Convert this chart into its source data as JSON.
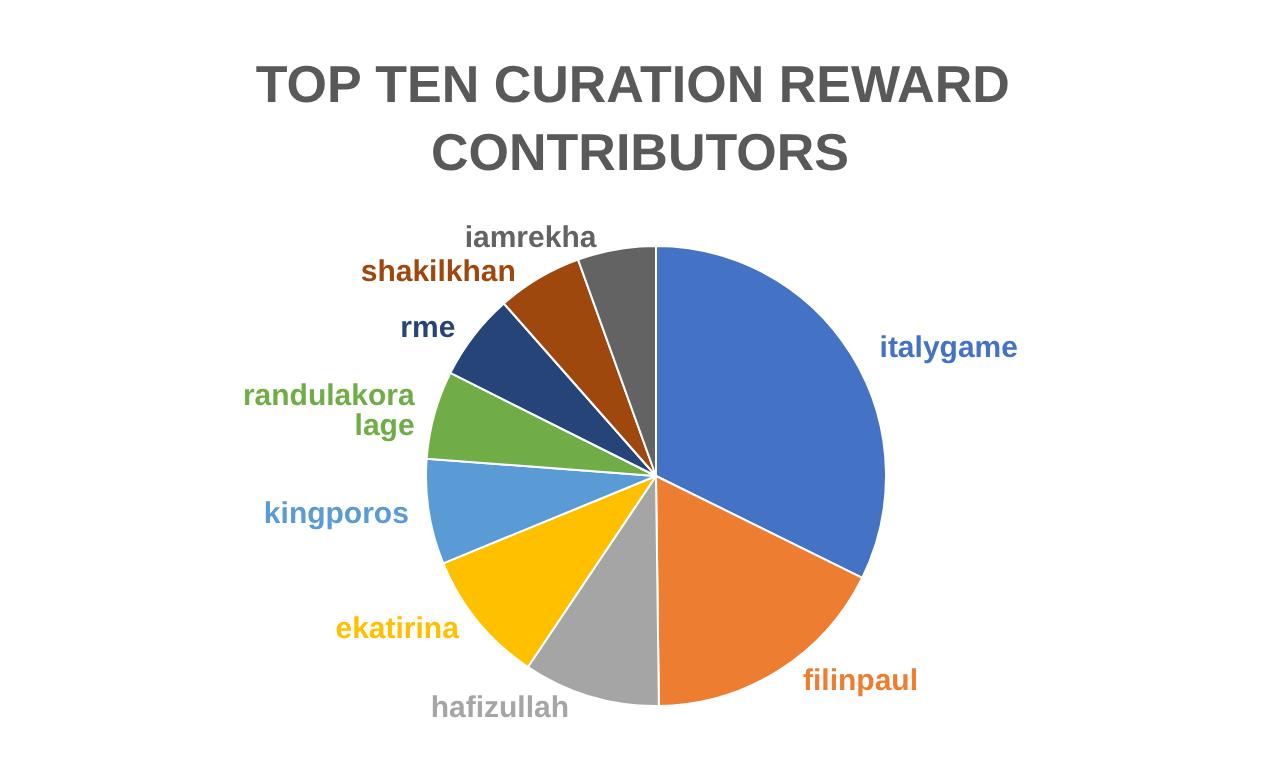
{
  "chart_data": {
    "type": "pie",
    "title": "TOP TEN CURATION REWARD CONTRIBUTORS",
    "categories": [
      "italygame",
      "filinpaul",
      "hafizullah",
      "ekatirina",
      "kingporos",
      "randulakoralage",
      "rme",
      "shakilkhan",
      "iamrekha"
    ],
    "values": [
      32.3,
      17.5,
      9.6,
      9.4,
      7.4,
      6.2,
      6.1,
      6.0,
      5.5
    ],
    "colors": [
      "#4472c4",
      "#ed7d31",
      "#a5a5a5",
      "#ffc000",
      "#5b9bd5",
      "#70ad47",
      "#264478",
      "#9e480e",
      "#636363"
    ],
    "legend": false
  }
}
